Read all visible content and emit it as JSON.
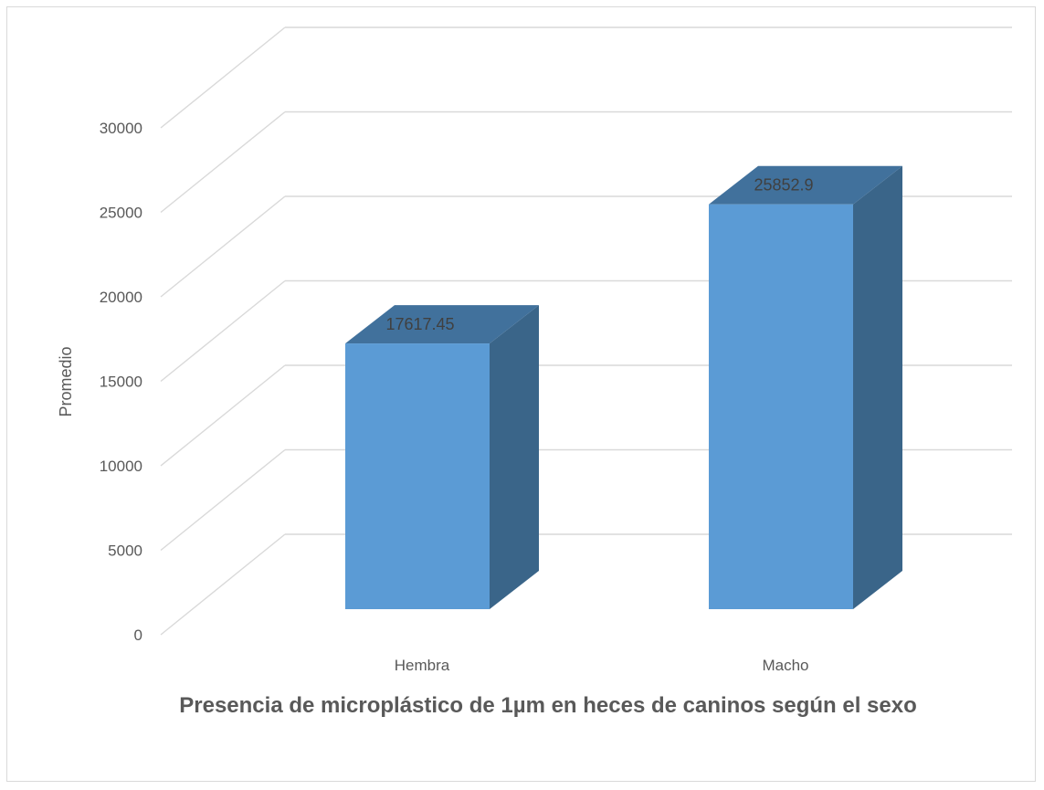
{
  "chart_data": {
    "type": "bar",
    "style": "3d-column",
    "title": "Presencia de microplástico de 1µm en heces de caninos según el sexo",
    "xlabel": "",
    "ylabel": "Promedio",
    "categories": [
      "Hembra",
      "Macho"
    ],
    "values": [
      17617.45,
      25852.9
    ],
    "data_labels": [
      "17617.45",
      "25852.9"
    ],
    "ylim": [
      0,
      30000
    ],
    "yticks": [
      0,
      5000,
      10000,
      15000,
      20000,
      25000,
      30000
    ],
    "ytick_labels": [
      "0",
      "5000",
      "10000",
      "15000",
      "20000",
      "25000",
      "30000"
    ],
    "grid": true,
    "legend": "none",
    "colors": {
      "bar_front": "#5b9bd5",
      "bar_top": "#41719c",
      "bar_side": "#3a6589",
      "gridline": "#d9d9d9",
      "text": "#595959"
    }
  }
}
